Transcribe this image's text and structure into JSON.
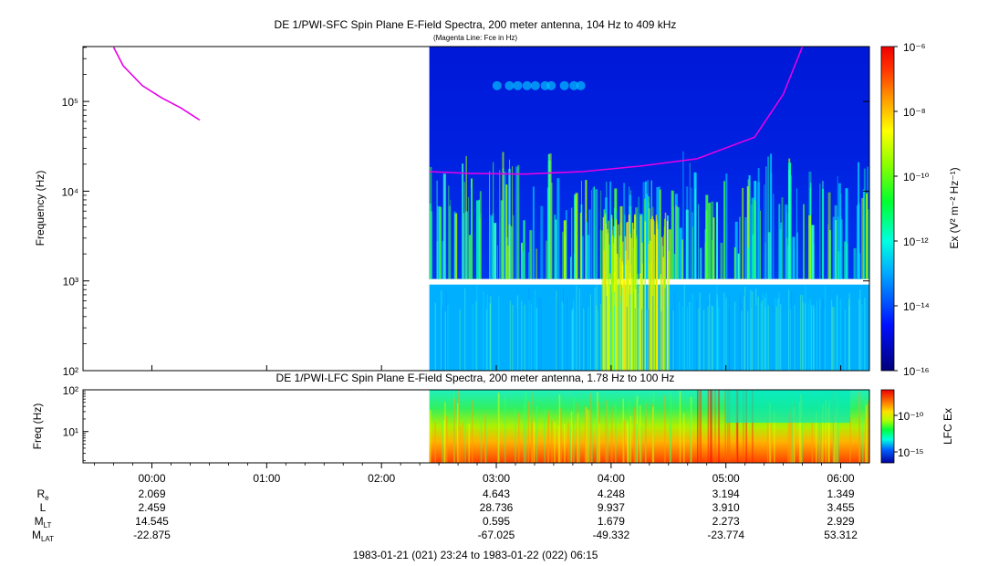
{
  "header": {
    "title": "DE 1/PWI-SFC  Spin Plane E-Field Spectra, 200 meter antenna, 104 Hz to 409 kHz",
    "subtitle": "(Magenta Line: Fce in Hz)"
  },
  "chart_data": [
    {
      "type": "heatmap",
      "title": "DE 1/PWI-SFC  Spin Plane E-Field Spectra, 200 meter antenna, 104 Hz to 409 kHz",
      "subtitle": "(Magenta Line: Fce in Hz)",
      "ylabel": "Frequency (Hz)",
      "y_scale": "log",
      "ylim": [
        100,
        409000
      ],
      "y_ticks": [
        "10²",
        "10³",
        "10⁴",
        "10⁵"
      ],
      "colorbar_label": "Ex (V² m⁻² Hz⁻¹)",
      "colorbar_scale": "log",
      "colorbar_range": [
        1e-16,
        1e-06
      ],
      "colorbar_ticks": [
        "10⁻⁶",
        "10⁻⁸",
        "10⁻¹⁰",
        "10⁻¹²",
        "10⁻¹⁴",
        "10⁻¹⁶"
      ],
      "data_start": "02:25",
      "data_end": "06:15",
      "fce_line": {
        "name": "Fce",
        "color": "#e600e6",
        "segment_1": {
          "x": [
            "23:40",
            "23:45",
            "23:55",
            "00:05",
            "00:15",
            "00:25"
          ],
          "y": [
            400000,
            250000,
            150000,
            110000,
            85000,
            62000
          ]
        },
        "segment_2": {
          "x": [
            "02:25",
            "02:45",
            "03:15",
            "03:45",
            "04:15",
            "04:45",
            "05:15",
            "05:30",
            "05:40"
          ],
          "y": [
            16500,
            15800,
            15500,
            16500,
            19000,
            23000,
            40000,
            120000,
            409000
          ]
        }
      }
    },
    {
      "type": "heatmap",
      "title": "DE 1/PWI-LFC  Spin Plane E-Field Spectra, 200 meter antenna, 1.78 Hz to 100 Hz",
      "ylabel": "Freq (Hz)",
      "y_scale": "log",
      "ylim": [
        1.78,
        100
      ],
      "y_ticks": [
        "10¹",
        "10²"
      ],
      "colorbar_label": "LFC Ex",
      "colorbar_scale": "log",
      "colorbar_ticks": [
        "10⁻¹⁰",
        "10⁻¹⁵"
      ],
      "data_start": "02:25",
      "data_end": "06:15"
    }
  ],
  "x_axis": {
    "range": [
      "23:24",
      "06:15"
    ],
    "ticks": [
      "00:00",
      "01:00",
      "02:00",
      "03:00",
      "04:00",
      "05:00",
      "06:00"
    ]
  },
  "ephemeris": {
    "rows": [
      {
        "label": "R",
        "sub": "e",
        "values": [
          "2.069",
          "",
          "",
          "4.643",
          "4.248",
          "3.194",
          "1.349"
        ]
      },
      {
        "label": "L",
        "sub": "",
        "values": [
          "2.459",
          "",
          "",
          "28.736",
          "9.937",
          "3.910",
          "3.455"
        ]
      },
      {
        "label": "M",
        "sub": "LT",
        "values": [
          "14.545",
          "",
          "",
          "0.595",
          "1.679",
          "2.273",
          "2.929"
        ]
      },
      {
        "label": "M",
        "sub": "LAT",
        "values": [
          "-22.875",
          "",
          "",
          "-67.025",
          "-49.332",
          "-23.774",
          "53.312"
        ]
      }
    ]
  },
  "footer": {
    "time_range": "1983-01-21 (021) 23:24 to 1983-01-22 (022) 06:15"
  }
}
